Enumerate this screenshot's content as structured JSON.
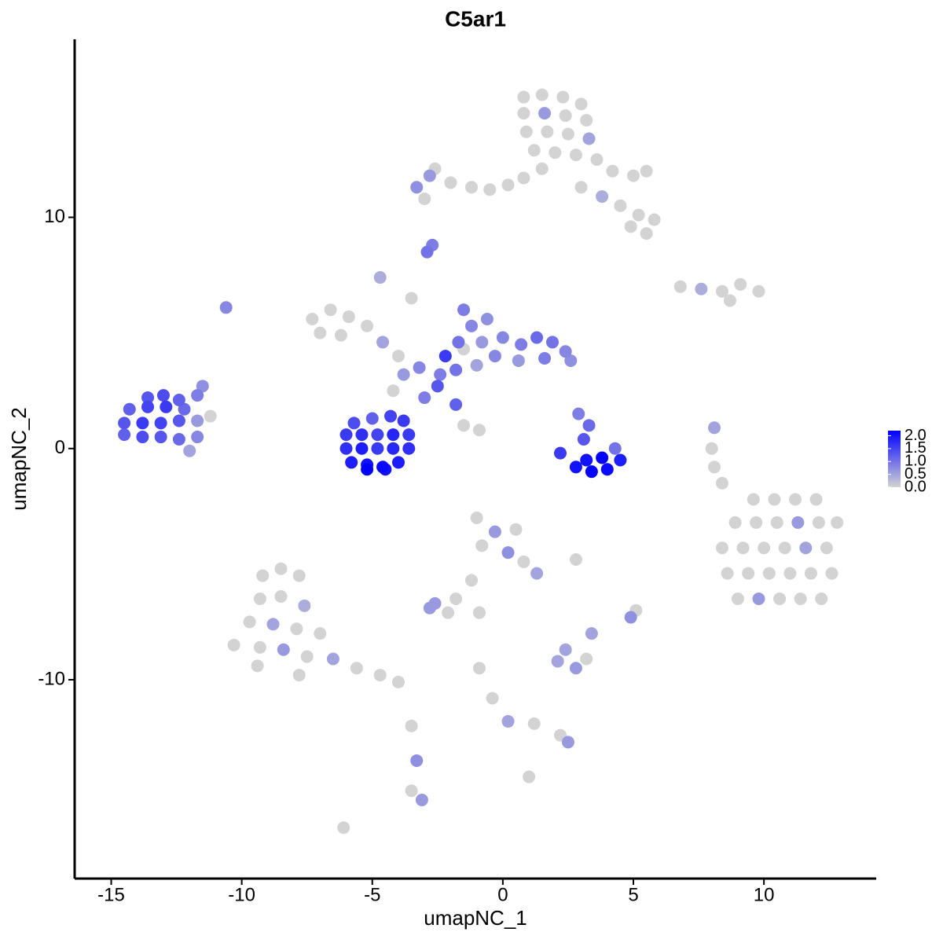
{
  "chart_data": {
    "type": "scatter",
    "title": "C5ar1",
    "x_label": "umapNC_1",
    "y_label": "umapNC_2",
    "xlim": [
      -16.4,
      14.3
    ],
    "ylim": [
      -18.6,
      17.7
    ],
    "xticks": [
      -15,
      -10,
      -5,
      0,
      5,
      10
    ],
    "yticks": [
      -10,
      0,
      10
    ],
    "color_low": "#d3d3d3",
    "color_high": "#0000ff",
    "colorbar": {
      "lim": [
        0,
        2.2
      ],
      "ticks": [
        {
          "value": 0,
          "label": "0.0"
        },
        {
          "value": 0.5,
          "label": "0.5"
        },
        {
          "value": 1,
          "label": "1.0"
        },
        {
          "value": 1.5,
          "label": "1.5"
        },
        {
          "value": 2,
          "label": "2.0"
        }
      ]
    },
    "x": [
      0.8,
      1.5,
      2.3,
      3.0,
      0.8,
      1.6,
      2.4,
      3.2,
      0.9,
      1.7,
      2.5,
      3.3,
      1.2,
      2.0,
      2.8,
      3.6,
      4.2,
      5.0,
      5.5,
      1.5,
      0.8,
      0.2,
      -0.5,
      -1.2,
      -2.0,
      -2.8,
      -3.3,
      -2.6,
      3.0,
      3.8,
      4.5,
      5.2,
      5.8,
      4.9,
      5.5,
      -3.0,
      -2.9,
      -2.7,
      6.8,
      7.6,
      8.4,
      9.1,
      9.8,
      8.7,
      -7.3,
      -6.6,
      -5.9,
      -5.2,
      -4.6,
      -4.0,
      -7.0,
      -6.2,
      -3.5,
      -4.7,
      -3.2,
      -2.5,
      -3.0,
      -1.8,
      -1.5,
      -0.9,
      -4.2,
      -3.8,
      -2.2,
      -1.5,
      -1.5,
      -1.2,
      -0.6,
      -1.7,
      -0.8,
      0.0,
      0.7,
      1.3,
      1.9,
      2.4,
      2.6,
      1.6,
      0.6,
      -0.3,
      -1.0,
      -1.8,
      -2.4,
      -5.7,
      -5.0,
      -4.3,
      -3.8,
      -6.0,
      -5.4,
      -4.8,
      -4.2,
      -3.6,
      -6.0,
      -5.4,
      -4.8,
      -4.2,
      -3.6,
      -5.8,
      -5.2,
      -4.6,
      -4.0,
      -5.2,
      -4.5,
      -14.5,
      -13.8,
      -13.1,
      -12.4,
      -11.7,
      -14.5,
      -13.8,
      -13.1,
      -12.4,
      -11.7,
      -14.3,
      -13.6,
      -12.9,
      -12.2,
      -13.6,
      -13.0,
      -12.4,
      -11.5,
      -11.2,
      -10.6,
      -12.0,
      -11.7,
      2.2,
      2.8,
      3.4,
      4.0,
      4.5,
      3.2,
      3.8,
      3.1,
      3.3,
      2.9,
      4.3,
      8.1,
      8.0,
      8.1,
      8.4,
      9.6,
      10.4,
      11.2,
      12.0,
      8.9,
      9.7,
      10.5,
      11.3,
      12.1,
      12.8,
      8.4,
      9.2,
      10.0,
      10.8,
      11.6,
      12.4,
      8.6,
      9.4,
      10.2,
      11.0,
      11.8,
      12.6,
      9.0,
      9.8,
      10.6,
      11.4,
      12.2,
      -1.0,
      -0.3,
      0.5,
      -0.8,
      0.2,
      0.8,
      1.3,
      -1.2,
      -1.8,
      -2.6,
      -2.1,
      2.8,
      -0.9,
      -9.2,
      -8.5,
      -7.8,
      -9.3,
      -8.5,
      -7.6,
      -9.7,
      -8.8,
      -7.9,
      -7.0,
      -10.3,
      -9.3,
      -8.4,
      -7.5,
      -6.5,
      -5.6,
      -4.7,
      -4.0,
      -9.4,
      -7.8,
      -3.5,
      -3.3,
      -3.5,
      -3.1,
      -6.1,
      -0.9,
      -0.4,
      0.2,
      1.2,
      2.2,
      2.5,
      1.0,
      2.1,
      2.8,
      3.2,
      2.4,
      4.9,
      5.1,
      3.4,
      -2.8,
      -0.9
    ],
    "y": [
      15.2,
      15.3,
      15.2,
      14.9,
      14.5,
      14.5,
      14.4,
      14.2,
      13.7,
      13.7,
      13.6,
      13.4,
      12.9,
      12.8,
      12.7,
      12.5,
      12.0,
      11.8,
      12.0,
      12.1,
      11.7,
      11.4,
      11.2,
      11.3,
      11.5,
      11.8,
      11.3,
      12.1,
      11.3,
      10.9,
      10.5,
      10.1,
      9.9,
      9.6,
      9.3,
      10.8,
      8.5,
      8.8,
      7.0,
      6.9,
      6.8,
      7.1,
      6.8,
      6.4,
      5.6,
      6.0,
      5.7,
      5.3,
      4.6,
      4.0,
      5.0,
      4.9,
      6.5,
      7.4,
      3.5,
      2.7,
      2.2,
      1.9,
      1.0,
      0.8,
      2.5,
      3.2,
      4.0,
      4.3,
      6.0,
      5.3,
      5.6,
      4.6,
      4.6,
      4.8,
      4.5,
      4.8,
      4.6,
      4.2,
      3.8,
      3.9,
      3.8,
      4.0,
      3.6,
      3.4,
      3.2,
      1.1,
      1.3,
      1.4,
      1.2,
      0.6,
      0.6,
      0.6,
      0.6,
      0.6,
      0.0,
      0.0,
      0.0,
      0.0,
      0.0,
      -0.6,
      -0.7,
      -0.8,
      -0.6,
      -0.9,
      -0.9,
      0.6,
      0.5,
      0.5,
      0.4,
      0.5,
      1.1,
      1.1,
      1.1,
      1.2,
      1.2,
      1.7,
      1.8,
      1.8,
      1.7,
      2.2,
      2.3,
      2.1,
      2.7,
      1.4,
      6.1,
      -0.1,
      2.3,
      -0.2,
      -0.8,
      -1.0,
      -0.9,
      -0.5,
      -0.5,
      -0.4,
      0.4,
      1.0,
      1.5,
      0.0,
      0.9,
      0.0,
      -0.8,
      -1.5,
      -2.2,
      -2.2,
      -2.2,
      -2.2,
      -3.2,
      -3.2,
      -3.2,
      -3.2,
      -3.2,
      -3.2,
      -4.3,
      -4.3,
      -4.3,
      -4.3,
      -4.3,
      -4.3,
      -5.4,
      -5.4,
      -5.4,
      -5.4,
      -5.4,
      -5.4,
      -6.5,
      -6.5,
      -6.5,
      -6.5,
      -6.5,
      -3.0,
      -3.6,
      -3.5,
      -4.2,
      -4.5,
      -4.9,
      -5.4,
      -5.7,
      -6.5,
      -6.7,
      -7.1,
      -4.8,
      -7.1,
      -5.5,
      -5.2,
      -5.5,
      -6.5,
      -6.4,
      -6.8,
      -7.5,
      -7.6,
      -7.8,
      -8.0,
      -8.5,
      -8.6,
      -8.7,
      -9.0,
      -9.1,
      -9.5,
      -9.8,
      -10.1,
      -9.4,
      -9.8,
      -12.0,
      -13.5,
      -14.8,
      -15.2,
      -16.4,
      -9.5,
      -10.8,
      -11.8,
      -11.9,
      -12.4,
      -12.7,
      -14.2,
      -9.2,
      -9.5,
      -9.1,
      -8.7,
      -7.3,
      -7.0,
      -8.0,
      -6.9,
      -7.1
    ],
    "values": [
      0,
      0,
      0,
      0,
      0,
      0.6,
      0,
      0,
      0,
      0,
      0,
      0.5,
      0,
      0,
      0,
      0,
      0,
      0,
      0,
      0,
      0,
      0,
      0,
      0,
      0,
      0.6,
      0.7,
      0,
      0,
      0.4,
      0,
      0,
      0,
      0,
      0,
      0,
      1.0,
      0.9,
      0,
      0.4,
      0,
      0,
      0,
      0,
      0,
      0,
      0,
      0,
      0.5,
      0,
      0,
      0,
      0,
      0.4,
      0.8,
      1.3,
      0.9,
      1.2,
      0,
      0,
      0,
      0.6,
      1.6,
      0,
      0.9,
      0.8,
      0.7,
      1.0,
      0.6,
      0.8,
      0.9,
      1.1,
      1.0,
      0.8,
      0.7,
      0.9,
      0.6,
      0.8,
      0.5,
      1.0,
      0.9,
      1.4,
      1.2,
      1.5,
      1.6,
      1.6,
      1.7,
      1.5,
      1.8,
      1.6,
      1.7,
      1.9,
      1.6,
      1.8,
      1.7,
      1.9,
      2.0,
      2.1,
      1.9,
      2.2,
      2.0,
      1.2,
      1.4,
      1.3,
      1.1,
      0.8,
      1.3,
      1.6,
      1.5,
      1.3,
      0.6,
      1.2,
      1.5,
      1.6,
      1.1,
      1.3,
      1.4,
      1.2,
      0.7,
      0,
      0.8,
      0.5,
      0.9,
      1.6,
      2.0,
      2.2,
      2.1,
      1.9,
      2.0,
      2.2,
      1.3,
      1.1,
      0.9,
      1.0,
      0.5,
      0,
      0,
      0,
      0,
      0,
      0,
      0,
      0,
      0,
      0,
      0.6,
      0,
      0,
      0,
      0,
      0,
      0,
      0.5,
      0,
      0,
      0,
      0,
      0,
      0,
      0,
      0,
      0.6,
      0,
      0,
      0,
      0,
      0.6,
      0,
      0,
      0.7,
      0,
      0.5,
      0,
      0,
      0.6,
      0,
      0,
      0,
      0,
      0,
      0,
      0,
      0,
      0.4,
      0,
      0.5,
      0,
      0,
      0,
      0,
      0.6,
      0,
      0.5,
      0,
      0,
      0,
      0,
      0,
      0,
      0.7,
      0,
      0.6,
      0,
      0,
      0,
      0.5,
      0,
      0,
      0.6,
      0,
      0.5,
      0.6,
      0,
      0.5,
      0.7,
      0,
      0.5,
      0.6,
      0
    ]
  }
}
